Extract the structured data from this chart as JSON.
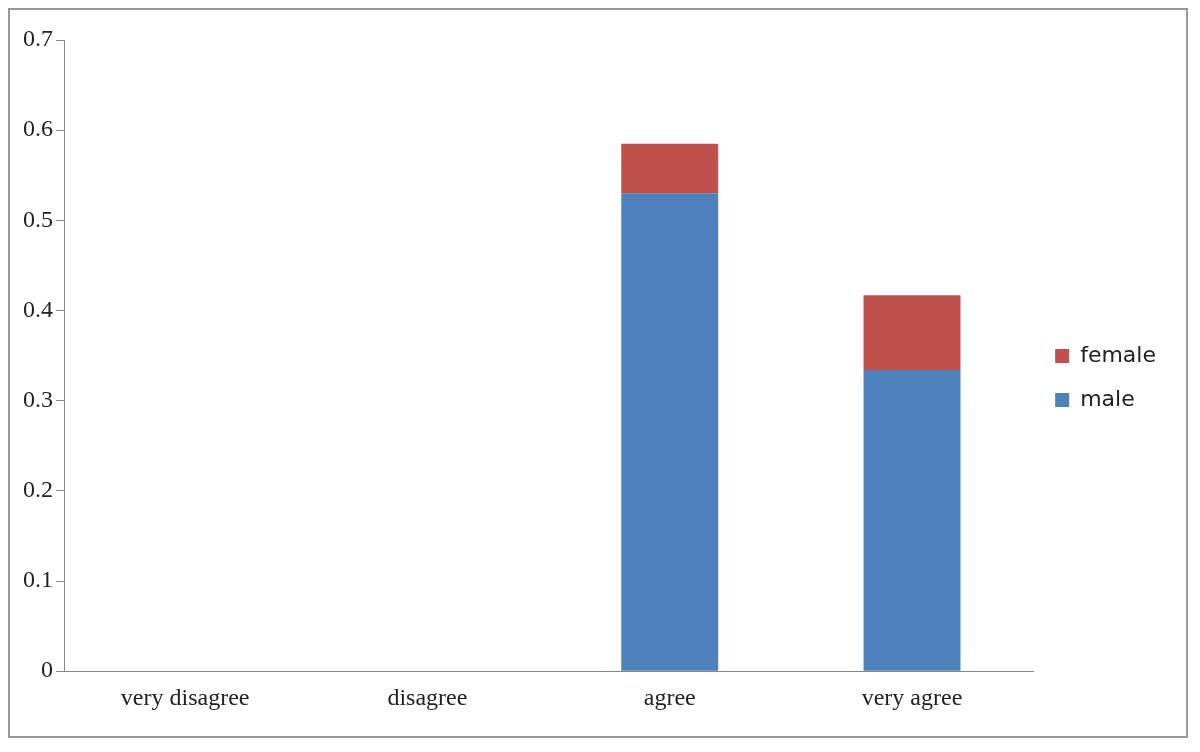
{
  "chart_data": {
    "type": "bar",
    "stacked": true,
    "categories": [
      "very disagree",
      "disagree",
      "agree",
      "very agree"
    ],
    "series": [
      {
        "name": "male",
        "color": "#4f81bd",
        "values": [
          0,
          0,
          0.53,
          0.334
        ]
      },
      {
        "name": "female",
        "color": "#c0504d",
        "values": [
          0,
          0,
          0.055,
          0.083
        ]
      }
    ],
    "ylim": [
      0,
      0.7
    ],
    "yticks": [
      0,
      0.1,
      0.2,
      0.3,
      0.4,
      0.5,
      0.6,
      0.7
    ],
    "grid": false,
    "legend": "right"
  }
}
